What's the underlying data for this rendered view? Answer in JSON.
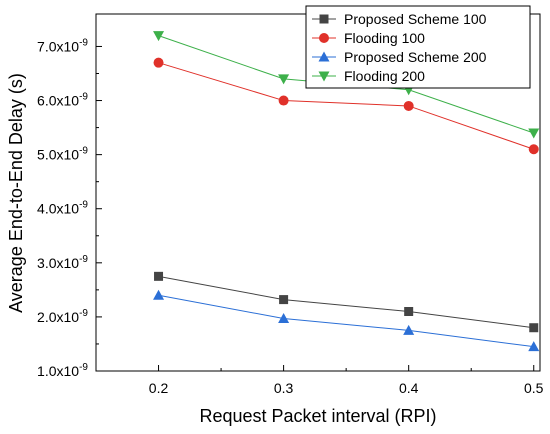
{
  "chart_data": {
    "type": "line",
    "title": "",
    "xlabel": "Request Packet interval (RPI)",
    "ylabel": "Average End-to-End Delay (s)",
    "x": [
      0.2,
      0.3,
      0.4,
      0.5
    ],
    "x_ticks": [
      0.2,
      0.3,
      0.4,
      0.5
    ],
    "x_tick_labels": [
      "0.2",
      "0.3",
      "0.4",
      "0.5"
    ],
    "xlim": [
      0.15,
      0.505
    ],
    "y_ticks": [
      1e-09,
      2e-09,
      3e-09,
      4e-09,
      5e-09,
      6e-09,
      7e-09
    ],
    "y_tick_mantissas": [
      "1.0x10",
      "2.0x10",
      "3.0x10",
      "4.0x10",
      "5.0x10",
      "6.0x10",
      "7.0x10"
    ],
    "y_tick_exponent": "-9",
    "ylim": [
      1e-09,
      7.6e-09
    ],
    "grid": false,
    "legend_position": "top-right",
    "series": [
      {
        "name": "Proposed Scheme 100",
        "marker": "square",
        "color": "#444444",
        "values": [
          2.75e-09,
          2.32e-09,
          2.1e-09,
          1.8e-09
        ]
      },
      {
        "name": "Flooding 100",
        "marker": "circle",
        "color": "#e0312a",
        "values": [
          6.7e-09,
          6e-09,
          5.9e-09,
          5.1e-09
        ]
      },
      {
        "name": "Proposed Scheme 200",
        "marker": "triangle-up",
        "color": "#2b6fd6",
        "values": [
          2.4e-09,
          1.97e-09,
          1.75e-09,
          1.45e-09
        ]
      },
      {
        "name": "Flooding 200",
        "marker": "triangle-down",
        "color": "#3db04a",
        "values": [
          7.2e-09,
          6.4e-09,
          6.2e-09,
          5.4e-09
        ]
      }
    ]
  }
}
